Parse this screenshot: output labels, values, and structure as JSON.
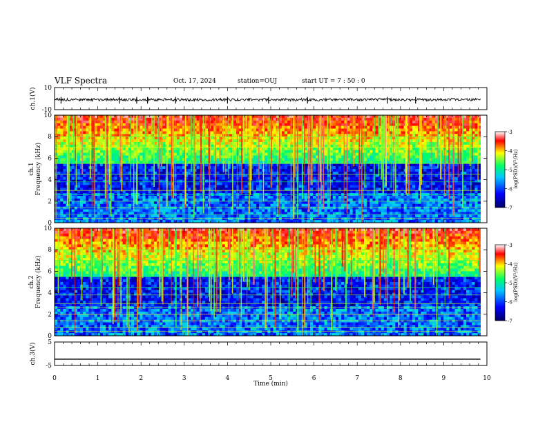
{
  "header": {
    "title": "VLF Spectra",
    "date": "Oct. 17, 2024",
    "station": "station=OUJ",
    "start_ut": "start  UT =   7 : 50 : 0"
  },
  "chart_data": [
    {
      "type": "line",
      "panel": "ch1_waveform",
      "ylabel": "ch.1(V)",
      "ylim": [
        -10,
        10
      ],
      "y_ticks": [
        "10",
        "-10"
      ],
      "baseline": -1,
      "noise_amplitude": 0.6,
      "spikes_min": [
        0.15,
        1.5,
        1.9,
        2.15,
        2.8,
        4.0,
        4.95,
        5.85,
        7.7,
        8.35
      ],
      "color": "#000000"
    },
    {
      "type": "heatmap",
      "panel": "ch1_spectrogram",
      "ylabel": "Frequency (kHz)",
      "channel_label": "ch.1",
      "ylim": [
        0,
        10
      ],
      "y_ticks": [
        "0",
        "2",
        "4",
        "6",
        "8",
        "10"
      ],
      "colorbar": {
        "label": "log(PSD)(V²/Hz)",
        "range": [
          -7,
          -3
        ],
        "ticks": [
          "-3",
          "-4",
          "-5",
          "-6",
          "-7"
        ]
      }
    },
    {
      "type": "heatmap",
      "panel": "ch2_spectrogram",
      "ylabel": "Frequency (kHz)",
      "channel_label": "ch.2",
      "ylim": [
        0,
        10
      ],
      "y_ticks": [
        "0",
        "2",
        "4",
        "6",
        "8",
        "10"
      ],
      "colorbar": {
        "label": "log(PSD)(V²/Hz)",
        "range": [
          -7,
          -3
        ],
        "ticks": [
          "-3",
          "-4",
          "-5",
          "-6",
          "-7"
        ]
      }
    },
    {
      "type": "line",
      "panel": "ch3_waveform",
      "ylabel": "ch.3(V)",
      "ylim": [
        -5,
        5
      ],
      "y_ticks": [
        "5",
        "-5"
      ],
      "value": -2.3,
      "xlabel": "Time (min)",
      "xlim": [
        0,
        10
      ],
      "x_ticks": [
        "0",
        "1",
        "2",
        "3",
        "4",
        "5",
        "6",
        "7",
        "8",
        "9",
        "10"
      ],
      "data_end_min": 9.85,
      "color": "#000000"
    }
  ],
  "colors": {
    "colormap": [
      "#000066",
      "#0000ff",
      "#00c8ff",
      "#00ff66",
      "#ffff00",
      "#ff0000",
      "#ffffff"
    ],
    "axes": "#000000",
    "background": "#ffffff"
  }
}
